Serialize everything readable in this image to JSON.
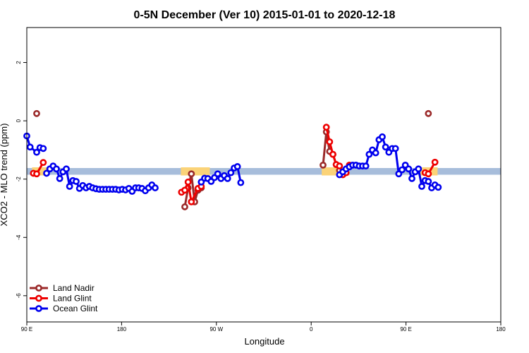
{
  "chart_data": {
    "type": "line",
    "title": "0-5N December (Ver 10)   2015-01-01 to 2020-12-18",
    "xlabel": "Longitude",
    "ylabel": "XCO2 - MLO trend (ppm)",
    "xlim": [
      -180,
      180
    ],
    "ylim": [
      -6.9,
      3.2
    ],
    "x_ticks": [
      {
        "value": -180,
        "label": "90 E"
      },
      {
        "value": -108,
        "label": "180"
      },
      {
        "value": -36,
        "label": "90 W"
      },
      {
        "value": 36,
        "label": "0"
      },
      {
        "value": 108,
        "label": "90 E"
      },
      {
        "value": 180,
        "label": "180"
      }
    ],
    "y_ticks": [
      {
        "value": 2,
        "label": "2"
      },
      {
        "value": 0,
        "label": "0"
      },
      {
        "value": -2,
        "label": "-2"
      },
      {
        "value": -4,
        "label": "-4"
      },
      {
        "value": -6,
        "label": "-6"
      }
    ],
    "band": {
      "from": -1.85,
      "to": -1.62,
      "color": "#a7bddb"
    },
    "land_highlights": [
      {
        "from": -176,
        "to": -164
      },
      {
        "from": -63,
        "to": -41
      },
      {
        "from": 44,
        "to": 65
      },
      {
        "from": 118,
        "to": 132
      }
    ],
    "highlight_color": "#fbd378",
    "legend": {
      "position": "bottom-left"
    },
    "series": [
      {
        "name": "Land Nadir",
        "color": "#9b2a2a",
        "segments": [
          [
            [
              -172.5,
              0.25
            ]
          ],
          [
            [
              -60,
              -2.95
            ],
            [
              -57.5,
              -2.3
            ],
            [
              -55,
              -1.82
            ],
            [
              -52.5,
              -2.78
            ],
            [
              -50,
              -2.38
            ],
            [
              -47.5,
              -2.3
            ]
          ],
          [
            [
              45,
              -1.52
            ],
            [
              47.5,
              -0.38
            ],
            [
              50,
              -1.05
            ],
            [
              52.5,
              -1.15
            ],
            [
              55,
              -1.5
            ],
            [
              57.5,
              -1.7
            ]
          ],
          [
            [
              125,
              0.25
            ]
          ]
        ]
      },
      {
        "name": "Land Glint",
        "color": "#ee0000",
        "segments": [
          [
            [
              -175,
              -1.8
            ],
            [
              -172.5,
              -1.82
            ],
            [
              -167.5,
              -1.43
            ]
          ],
          [
            [
              -62.5,
              -2.45
            ],
            [
              -60,
              -2.38
            ],
            [
              -57.5,
              -2.1
            ],
            [
              -55,
              -2.78
            ],
            [
              -50,
              -2.32
            ],
            [
              -47.5,
              -2.25
            ]
          ],
          [
            [
              47.5,
              -0.22
            ],
            [
              50,
              -0.72
            ],
            [
              52.5,
              -1.15
            ],
            [
              55,
              -1.5
            ],
            [
              57.5,
              -1.55
            ],
            [
              60,
              -1.85
            ],
            [
              62.5,
              -1.78
            ],
            [
              65,
              -1.52
            ]
          ],
          [
            [
              122.5,
              -1.78
            ],
            [
              125,
              -1.82
            ],
            [
              130,
              -1.42
            ]
          ]
        ]
      },
      {
        "name": "Ocean Glint",
        "color": "#0000ee",
        "segments": [
          [
            [
              -180,
              -0.52
            ],
            [
              -177.5,
              -0.9
            ],
            [
              -172.5,
              -1.08
            ],
            [
              -170,
              -0.92
            ],
            [
              -167.5,
              -0.95
            ]
          ],
          [
            [
              -165,
              -1.8
            ],
            [
              -162.5,
              -1.65
            ],
            [
              -160,
              -1.55
            ],
            [
              -157.5,
              -1.65
            ],
            [
              -155,
              -1.98
            ],
            [
              -152.5,
              -1.75
            ],
            [
              -150,
              -1.65
            ],
            [
              -147.5,
              -2.25
            ],
            [
              -145,
              -2.05
            ],
            [
              -142.5,
              -2.08
            ],
            [
              -140,
              -2.32
            ],
            [
              -137.5,
              -2.22
            ],
            [
              -135,
              -2.3
            ],
            [
              -132.5,
              -2.25
            ],
            [
              -130,
              -2.3
            ],
            [
              -127.5,
              -2.33
            ],
            [
              -125,
              -2.35
            ],
            [
              -122.5,
              -2.35
            ],
            [
              -120,
              -2.35
            ],
            [
              -117.5,
              -2.35
            ],
            [
              -115,
              -2.35
            ],
            [
              -112.5,
              -2.35
            ],
            [
              -110,
              -2.37
            ],
            [
              -107.5,
              -2.35
            ],
            [
              -105,
              -2.37
            ],
            [
              -102.5,
              -2.32
            ],
            [
              -100,
              -2.42
            ],
            [
              -97.5,
              -2.3
            ],
            [
              -95,
              -2.3
            ],
            [
              -92.5,
              -2.32
            ],
            [
              -90,
              -2.4
            ],
            [
              -87.5,
              -2.3
            ],
            [
              -85,
              -2.2
            ],
            [
              -82.5,
              -2.3
            ]
          ],
          [
            [
              -47.5,
              -2.1
            ],
            [
              -45,
              -1.97
            ],
            [
              -42.5,
              -1.98
            ],
            [
              -40,
              -2.08
            ],
            [
              -37.5,
              -1.95
            ],
            [
              -35,
              -1.82
            ],
            [
              -32.5,
              -1.98
            ],
            [
              -30,
              -1.88
            ],
            [
              -27.5,
              -1.98
            ],
            [
              -25,
              -1.78
            ],
            [
              -22.5,
              -1.62
            ],
            [
              -20,
              -1.57
            ],
            [
              -17.5,
              -2.12
            ]
          ],
          [
            [
              57.5,
              -1.85
            ],
            [
              60,
              -1.75
            ],
            [
              62.5,
              -1.65
            ],
            [
              65,
              -1.58
            ],
            [
              67.5,
              -1.52
            ],
            [
              70,
              -1.52
            ],
            [
              72.5,
              -1.55
            ],
            [
              75,
              -1.55
            ],
            [
              77.5,
              -1.55
            ],
            [
              80,
              -1.15
            ],
            [
              82.5,
              -1.0
            ],
            [
              85,
              -1.1
            ],
            [
              87.5,
              -0.65
            ],
            [
              90,
              -0.55
            ],
            [
              92.5,
              -0.9
            ],
            [
              95,
              -1.08
            ],
            [
              97.5,
              -0.95
            ],
            [
              100,
              -0.95
            ],
            [
              102.5,
              -1.82
            ],
            [
              105,
              -1.68
            ],
            [
              107.5,
              -1.52
            ],
            [
              110,
              -1.65
            ],
            [
              112.5,
              -1.98
            ],
            [
              115,
              -1.75
            ],
            [
              117.5,
              -1.65
            ],
            [
              120,
              -2.25
            ],
            [
              122.5,
              -2.05
            ],
            [
              125,
              -2.08
            ],
            [
              127.5,
              -2.3
            ],
            [
              130,
              -2.2
            ],
            [
              132.5,
              -2.28
            ]
          ]
        ]
      }
    ]
  }
}
